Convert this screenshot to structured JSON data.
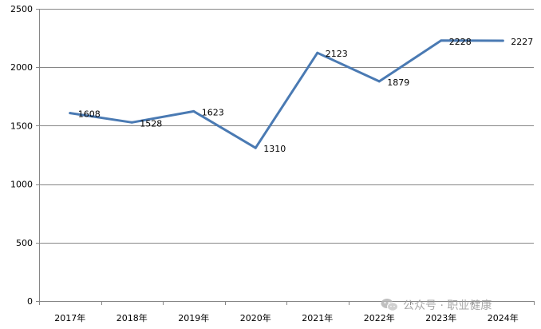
{
  "chart_data": {
    "type": "line",
    "title": "",
    "xlabel": "",
    "ylabel": "",
    "categories": [
      "2017年",
      "2018年",
      "2019年",
      "2020年",
      "2021年",
      "2022年",
      "2023年",
      "2024年"
    ],
    "series": [
      {
        "values": [
          1608,
          1528,
          1623,
          1310,
          2123,
          1879,
          2228,
          2227
        ],
        "labels": [
          "1608",
          "1528",
          "1623",
          "1310",
          "2123",
          "1879",
          "2228",
          "2227"
        ]
      }
    ],
    "ylim": [
      0,
      2500
    ],
    "yticks": [
      0,
      500,
      1000,
      1500,
      2000,
      2500
    ],
    "ytick_labels": [
      "0",
      "500",
      "1000",
      "1500",
      "2000",
      "2500"
    ],
    "grid": true,
    "legend": "none",
    "line_color": "#4a7ab3",
    "grid_color": "#868686"
  },
  "watermark": {
    "icon": "wechat-icon",
    "text": "公众号 · 职业健康"
  }
}
